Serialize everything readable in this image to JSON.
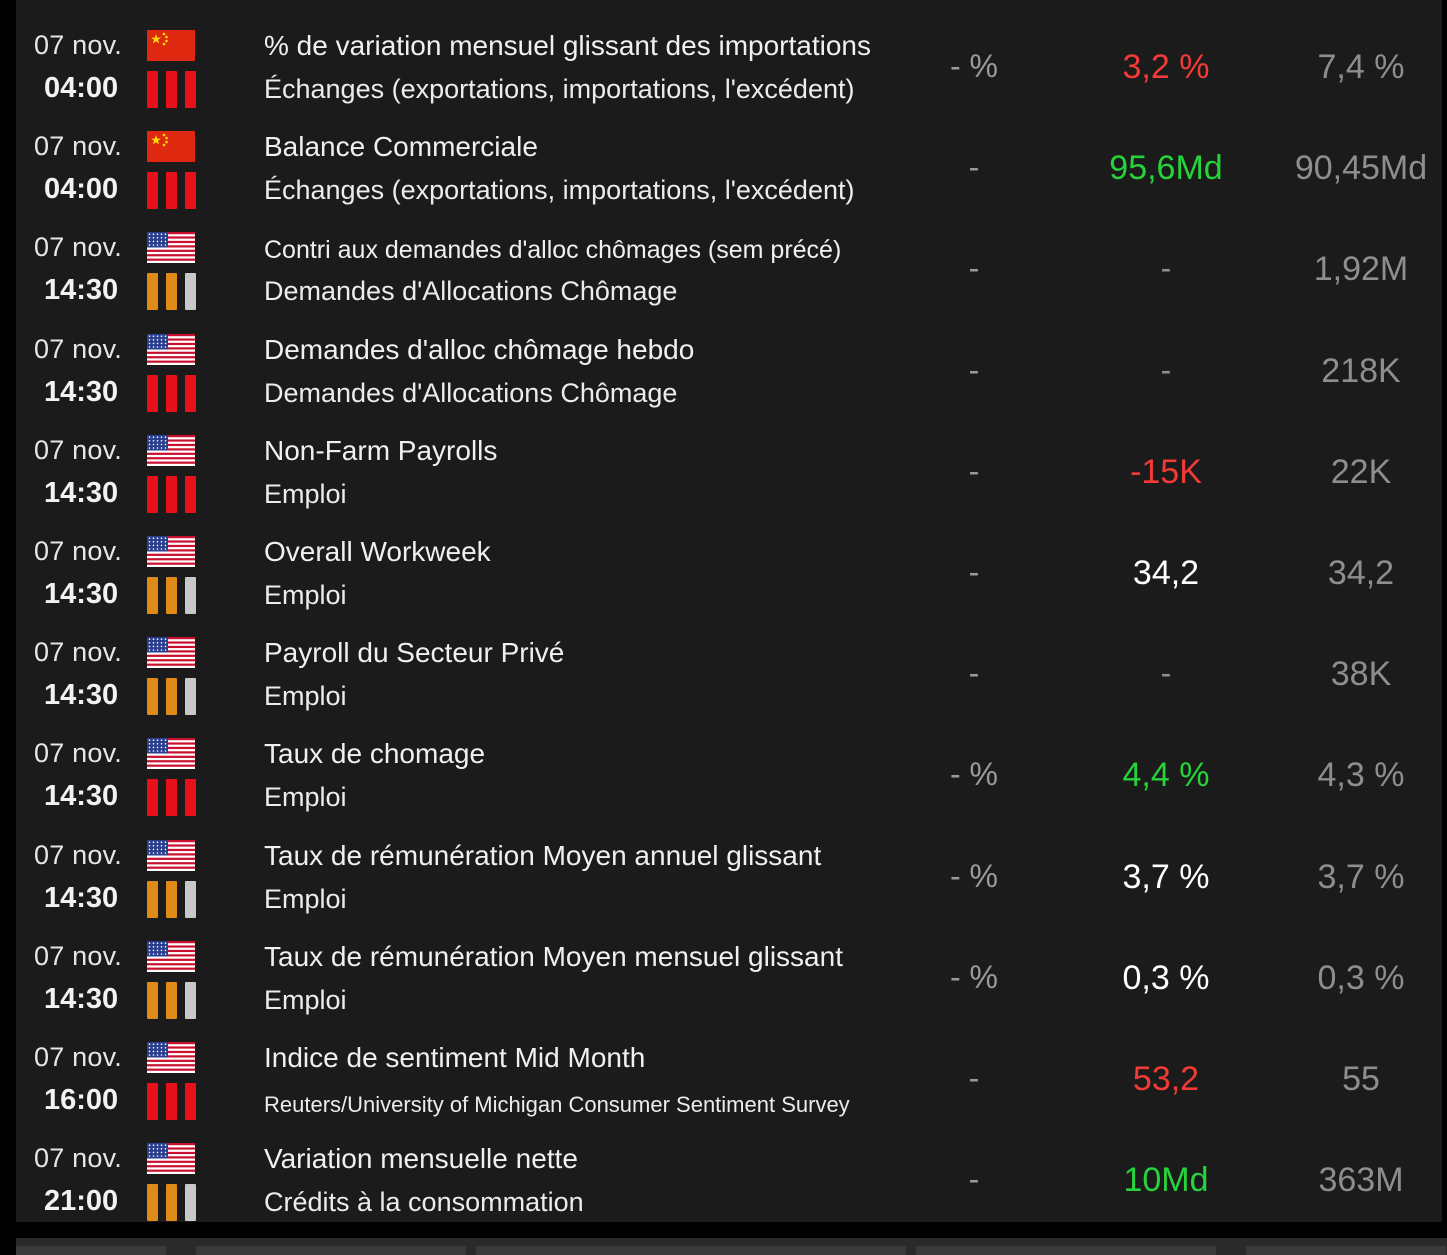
{
  "importance_colors": {
    "high": "#e8101a",
    "medium": "#e08a1a",
    "off": "#c8c8c8"
  },
  "value_colors": {
    "negative": "#f23b36",
    "positive": "#26d33a",
    "neutral": "#ffffff"
  },
  "events": [
    {
      "date": "07 nov.",
      "time": "04:00",
      "country": "china-flag-icon",
      "importance": 3,
      "title": "% de variation mensuel glissant des importations",
      "category": "Échanges (exportations, importations, l'excédent)",
      "forecast": "- %",
      "actual": "3,2 %",
      "actual_color": "negative",
      "previous": "7,4 %"
    },
    {
      "date": "07 nov.",
      "time": "04:00",
      "country": "china-flag-icon",
      "importance": 3,
      "title": "Balance Commerciale",
      "category": "Échanges (exportations, importations, l'excédent)",
      "forecast": "-",
      "actual": "95,6Md",
      "actual_color": "positive",
      "previous": "90,45Md"
    },
    {
      "date": "07 nov.",
      "time": "14:30",
      "country": "us-flag-icon",
      "importance": 2,
      "title": "Contri aux demandes d'alloc chômages (sem précé)",
      "category": "Demandes d'Allocations Chômage",
      "forecast": "-",
      "actual": "-",
      "actual_color": "dash",
      "previous": "1,92M",
      "small_title": true
    },
    {
      "date": "07 nov.",
      "time": "14:30",
      "country": "us-flag-icon",
      "importance": 3,
      "title": "Demandes d'alloc chômage hebdo",
      "category": "Demandes d'Allocations Chômage",
      "forecast": "-",
      "actual": "-",
      "actual_color": "dash",
      "previous": "218K"
    },
    {
      "date": "07 nov.",
      "time": "14:30",
      "country": "us-flag-icon",
      "importance": 3,
      "title": "Non-Farm Payrolls",
      "category": "Emploi",
      "forecast": "-",
      "actual": "-15K",
      "actual_color": "negative",
      "previous": "22K"
    },
    {
      "date": "07 nov.",
      "time": "14:30",
      "country": "us-flag-icon",
      "importance": 2,
      "title": "Overall Workweek",
      "category": "Emploi",
      "forecast": "-",
      "actual": "34,2",
      "actual_color": "neutral",
      "previous": "34,2"
    },
    {
      "date": "07 nov.",
      "time": "14:30",
      "country": "us-flag-icon",
      "importance": 2,
      "title": "Payroll du Secteur Privé",
      "category": "Emploi",
      "forecast": "-",
      "actual": "-",
      "actual_color": "dash",
      "previous": "38K"
    },
    {
      "date": "07 nov.",
      "time": "14:30",
      "country": "us-flag-icon",
      "importance": 3,
      "title": "Taux de chomage",
      "category": "Emploi",
      "forecast": "- %",
      "actual": "4,4 %",
      "actual_color": "positive",
      "previous": "4,3 %"
    },
    {
      "date": "07 nov.",
      "time": "14:30",
      "country": "us-flag-icon",
      "importance": 2,
      "title": "Taux de rémunération Moyen annuel glissant",
      "category": "Emploi",
      "forecast": "- %",
      "actual": "3,7 %",
      "actual_color": "neutral",
      "previous": "3,7 %"
    },
    {
      "date": "07 nov.",
      "time": "14:30",
      "country": "us-flag-icon",
      "importance": 2,
      "title": "Taux de rémunération Moyen mensuel glissant",
      "category": "Emploi",
      "forecast": "- %",
      "actual": "0,3 %",
      "actual_color": "neutral",
      "previous": "0,3 %"
    },
    {
      "date": "07 nov.",
      "time": "16:00",
      "country": "us-flag-icon",
      "importance": 3,
      "title": "Indice de sentiment Mid Month",
      "category": "Reuters/University of Michigan Consumer Sentiment Survey",
      "forecast": "-",
      "actual": "53,2",
      "actual_color": "negative",
      "previous": "55",
      "small_category": true
    },
    {
      "date": "07 nov.",
      "time": "21:00",
      "country": "us-flag-icon",
      "importance": 2,
      "title": "Variation mensuelle nette",
      "category": "Crédits à la consommation",
      "forecast": "-",
      "actual": "10Md",
      "actual_color": "positive",
      "previous": "363M"
    }
  ]
}
